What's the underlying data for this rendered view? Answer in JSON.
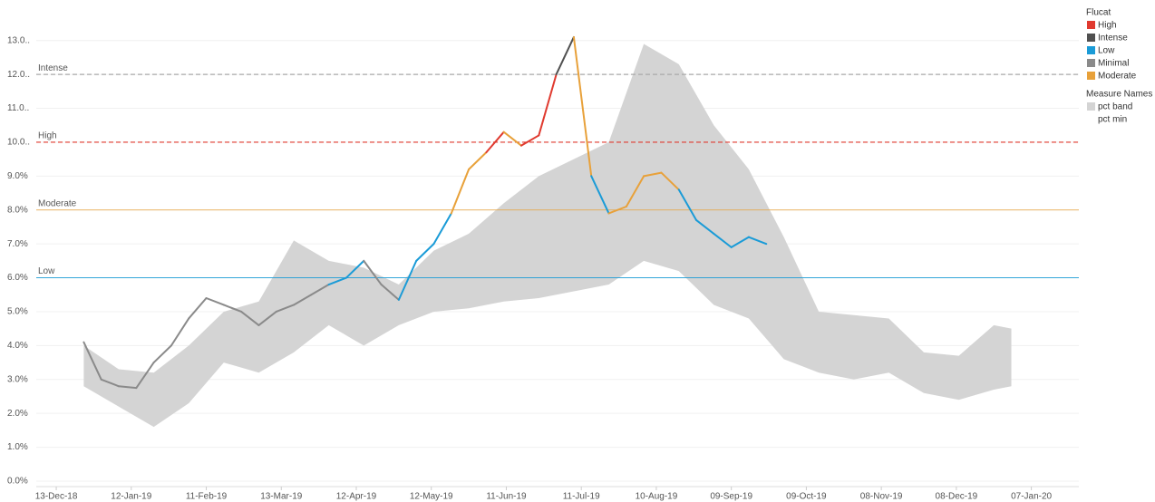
{
  "chart_data": {
    "type": "line",
    "xlim": [
      "2018-12-05",
      "2020-01-26"
    ],
    "ylim": [
      0,
      13.5
    ],
    "grid": true,
    "yticks": [
      {
        "value": 0,
        "label": "0.0%"
      },
      {
        "value": 1,
        "label": "1.0%"
      },
      {
        "value": 2,
        "label": "2.0%"
      },
      {
        "value": 3,
        "label": "3.0%"
      },
      {
        "value": 4,
        "label": "4.0%"
      },
      {
        "value": 5,
        "label": "5.0%"
      },
      {
        "value": 6,
        "label": "6.0%"
      },
      {
        "value": 7,
        "label": "7.0%"
      },
      {
        "value": 8,
        "label": "8.0%"
      },
      {
        "value": 9,
        "label": "9.0%"
      },
      {
        "value": 10,
        "label": "10.0.."
      },
      {
        "value": 11,
        "label": "11.0.."
      },
      {
        "value": 12,
        "label": "12.0.."
      },
      {
        "value": 13,
        "label": "13.0.."
      }
    ],
    "xticks": [
      {
        "value": "2018-12-13",
        "label": "13-Dec-18"
      },
      {
        "value": "2019-01-12",
        "label": "12-Jan-19"
      },
      {
        "value": "2019-02-11",
        "label": "11-Feb-19"
      },
      {
        "value": "2019-03-13",
        "label": "13-Mar-19"
      },
      {
        "value": "2019-04-12",
        "label": "12-Apr-19"
      },
      {
        "value": "2019-05-12",
        "label": "12-May-19"
      },
      {
        "value": "2019-06-11",
        "label": "11-Jun-19"
      },
      {
        "value": "2019-07-11",
        "label": "11-Jul-19"
      },
      {
        "value": "2019-08-10",
        "label": "10-Aug-19"
      },
      {
        "value": "2019-09-09",
        "label": "09-Sep-19"
      },
      {
        "value": "2019-10-09",
        "label": "09-Oct-19"
      },
      {
        "value": "2019-11-08",
        "label": "08-Nov-19"
      },
      {
        "value": "2019-12-08",
        "label": "08-Dec-19"
      },
      {
        "value": "2020-01-07",
        "label": "07-Jan-20"
      }
    ],
    "ref_lines": [
      {
        "label": "Intense",
        "value": 12,
        "color": "#aaaaaa",
        "dashed": true
      },
      {
        "label": "High",
        "value": 10,
        "color": "#e03a2f",
        "dashed": true
      },
      {
        "label": "Moderate",
        "value": 8,
        "color": "#e8a13a",
        "dashed": false
      },
      {
        "label": "Low",
        "value": 6,
        "color": "#1a9bd7",
        "dashed": false
      }
    ],
    "legends": [
      {
        "title": "Flucat",
        "items": [
          {
            "name": "High",
            "color": "#e03a2f"
          },
          {
            "name": "Intense",
            "color": "#505050"
          },
          {
            "name": "Low",
            "color": "#1a9bd7"
          },
          {
            "name": "Minimal",
            "color": "#8a8a8a"
          },
          {
            "name": "Moderate",
            "color": "#e8a13a"
          }
        ]
      },
      {
        "title": "Measure Names",
        "items": [
          {
            "name": "pct band",
            "color": "#d4d4d4"
          },
          {
            "name": "pct min"
          }
        ]
      }
    ],
    "band": {
      "color": "#d4d4d4",
      "x": [
        "2018-12-24",
        "2019-01-07",
        "2019-01-21",
        "2019-02-04",
        "2019-02-18",
        "2019-03-04",
        "2019-03-18",
        "2019-04-01",
        "2019-04-15",
        "2019-04-29",
        "2019-05-13",
        "2019-05-27",
        "2019-06-10",
        "2019-06-24",
        "2019-07-08",
        "2019-07-22",
        "2019-08-05",
        "2019-08-19",
        "2019-09-02",
        "2019-09-16",
        "2019-09-30",
        "2019-10-14",
        "2019-10-28",
        "2019-11-11",
        "2019-11-25",
        "2019-12-09",
        "2019-12-23",
        "2019-12-30"
      ],
      "low": [
        2.8,
        2.2,
        1.6,
        2.3,
        3.5,
        3.2,
        3.8,
        4.6,
        4.0,
        4.6,
        5.0,
        5.1,
        5.3,
        5.4,
        5.6,
        5.8,
        6.5,
        6.2,
        5.2,
        4.8,
        3.6,
        3.2,
        3.0,
        3.2,
        2.6,
        2.4,
        2.7,
        2.8
      ],
      "high": [
        4.0,
        3.3,
        3.2,
        4.0,
        5.0,
        5.3,
        7.1,
        6.5,
        6.3,
        5.8,
        6.8,
        7.3,
        8.2,
        9.0,
        9.5,
        10.0,
        12.9,
        12.3,
        10.5,
        9.2,
        7.2,
        5.0,
        4.9,
        4.8,
        3.8,
        3.7,
        4.6,
        4.5
      ]
    },
    "line": {
      "x": [
        "2018-12-24",
        "2018-12-31",
        "2019-01-07",
        "2019-01-14",
        "2019-01-21",
        "2019-01-28",
        "2019-02-04",
        "2019-02-11",
        "2019-02-18",
        "2019-02-25",
        "2019-03-04",
        "2019-03-11",
        "2019-03-18",
        "2019-03-25",
        "2019-04-01",
        "2019-04-08",
        "2019-04-15",
        "2019-04-22",
        "2019-04-29",
        "2019-05-06",
        "2019-05-13",
        "2019-05-20",
        "2019-05-27",
        "2019-06-03",
        "2019-06-10",
        "2019-06-17",
        "2019-06-24",
        "2019-07-01",
        "2019-07-08",
        "2019-07-15",
        "2019-07-22",
        "2019-07-29",
        "2019-08-05",
        "2019-08-12",
        "2019-08-19",
        "2019-08-26",
        "2019-09-02",
        "2019-09-09",
        "2019-09-16",
        "2019-09-23"
      ],
      "values": [
        4.1,
        3.0,
        2.8,
        2.75,
        3.5,
        4.0,
        4.8,
        5.4,
        5.2,
        5.0,
        4.6,
        5.0,
        5.2,
        5.5,
        5.8,
        6.0,
        6.5,
        5.8,
        5.35,
        6.5,
        7.0,
        7.9,
        9.2,
        9.7,
        10.3,
        9.9,
        10.2,
        12.0,
        13.1,
        9.0,
        7.9,
        8.1,
        9.0,
        9.1,
        8.6,
        7.7,
        7.3,
        6.9,
        7.2,
        7.0
      ],
      "flucat": [
        "Minimal",
        "Minimal",
        "Minimal",
        "Minimal",
        "Minimal",
        "Minimal",
        "Minimal",
        "Minimal",
        "Minimal",
        "Minimal",
        "Minimal",
        "Minimal",
        "Minimal",
        "Minimal",
        "Minimal",
        "Low",
        "Low",
        "Minimal",
        "Minimal",
        "Low",
        "Low",
        "Low",
        "Moderate",
        "Moderate",
        "High",
        "Moderate",
        "High",
        "High",
        "Intense",
        "Moderate",
        "Low",
        "Moderate",
        "Moderate",
        "Moderate",
        "Moderate",
        "Low",
        "Low",
        "Low",
        "Low",
        "Low"
      ]
    }
  }
}
